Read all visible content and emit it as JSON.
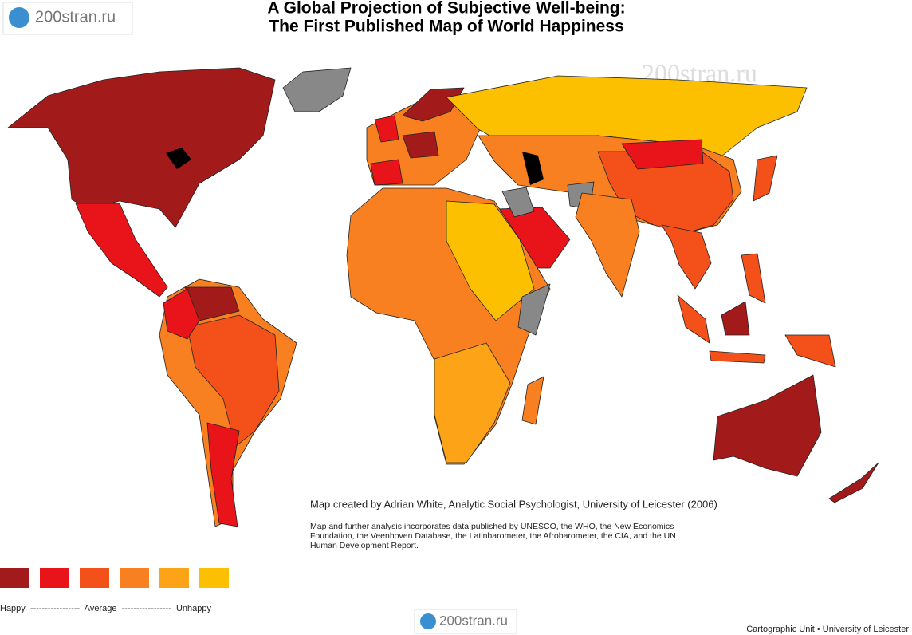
{
  "header": {
    "title": [
      "A Global Projection of Subjective Well-being:",
      "The First Published Map of World Happiness"
    ]
  },
  "watermarks": [
    "200stran.ru",
    "200stran.ru",
    "200stran.ru"
  ],
  "credits": {
    "author": "Map created by Adrian White, Analytic Social Psychologist, University of Leicester (2006)",
    "sources": [
      "Map and further analysis incorporates data published by UNESCO, the WHO, the New Economics",
      "Foundation, the Veenhoven Database, the Latinbarometer, the Afrobarometer, the CIA, and the UN",
      "Human Development Report."
    ]
  },
  "legend": {
    "colors": [
      "#a31a1a",
      "#e8141a",
      "#f4511a",
      "#f98020",
      "#fca318",
      "#fdc000"
    ],
    "label": "Happy  -----------------  Average  -----------------  Unhappy"
  },
  "footer": "Cartographic Unit  •  University of Leicester"
}
